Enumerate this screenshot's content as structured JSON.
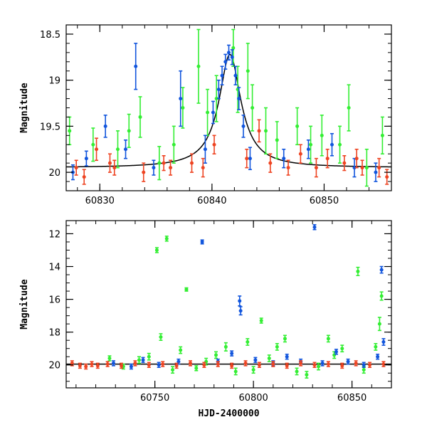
{
  "chart_data": [
    {
      "type": "scatter",
      "panel": "top",
      "xlabel": "",
      "ylabel": "Magnitude",
      "xlim": [
        60827,
        60856
      ],
      "ylim": [
        20.2,
        18.4
      ],
      "y_inverted": true,
      "xticks": [
        60830,
        60840,
        60850
      ],
      "yticks": [
        18.5,
        19,
        19.5,
        20
      ],
      "ytick_labels": [
        "18.5",
        "19",
        "19.5",
        "20"
      ],
      "colors": {
        "green": "#33ee33",
        "blue": "#1155dd",
        "red": "#ee4422",
        "model": "#000000"
      },
      "model_curve": {
        "baseline": 19.95,
        "peak_x": 60841.6,
        "peak_mag": 18.72,
        "width_days": 0.9
      },
      "series": [
        {
          "color_key": "green",
          "points": [
            [
              60827.3,
              19.55,
              0.15
            ],
            [
              60829.4,
              19.7,
              0.18
            ],
            [
              60831.6,
              19.75,
              0.2
            ],
            [
              60832.6,
              19.55,
              0.18
            ],
            [
              60833.6,
              19.4,
              0.22
            ],
            [
              60835.3,
              19.9,
              0.18
            ],
            [
              60836.6,
              19.7,
              0.2
            ],
            [
              60837.4,
              19.3,
              0.22
            ],
            [
              60838.8,
              18.85,
              0.4
            ],
            [
              60839.6,
              19.35,
              0.25
            ],
            [
              60840.4,
              19.2,
              0.25
            ],
            [
              60841.9,
              18.65,
              0.2
            ],
            [
              60842.3,
              19.1,
              0.25
            ],
            [
              60843.2,
              18.9,
              0.3
            ],
            [
              60843.6,
              19.3,
              0.25
            ],
            [
              60844.8,
              19.55,
              0.25
            ],
            [
              60845.8,
              19.65,
              0.2
            ],
            [
              60847.6,
              19.5,
              0.2
            ],
            [
              60848.8,
              19.7,
              0.2
            ],
            [
              60849.8,
              19.6,
              0.22
            ],
            [
              60851.4,
              19.7,
              0.2
            ],
            [
              60852.2,
              19.3,
              0.25
            ],
            [
              60853.8,
              19.95,
              0.2
            ],
            [
              60855.2,
              19.6,
              0.2
            ]
          ]
        },
        {
          "color_key": "blue",
          "points": [
            [
              60827.6,
              20.0,
              0.08
            ],
            [
              60828.8,
              19.85,
              0.08
            ],
            [
              60830.5,
              19.5,
              0.12
            ],
            [
              60832.3,
              19.75,
              0.1
            ],
            [
              60833.2,
              18.85,
              0.25
            ],
            [
              60834.8,
              19.95,
              0.08
            ],
            [
              60837.2,
              19.2,
              0.3
            ],
            [
              60839.4,
              19.75,
              0.15
            ],
            [
              60840.1,
              19.35,
              0.12
            ],
            [
              60840.6,
              19.1,
              0.1
            ],
            [
              60840.9,
              18.95,
              0.1
            ],
            [
              60841.2,
              18.8,
              0.08
            ],
            [
              60841.5,
              18.7,
              0.08
            ],
            [
              60841.8,
              18.75,
              0.08
            ],
            [
              60842.1,
              18.95,
              0.1
            ],
            [
              60842.4,
              19.2,
              0.12
            ],
            [
              60842.8,
              19.5,
              0.12
            ],
            [
              60843.4,
              19.85,
              0.12
            ],
            [
              60846.4,
              19.85,
              0.1
            ],
            [
              60848.6,
              19.75,
              0.1
            ],
            [
              60850.7,
              19.7,
              0.12
            ],
            [
              60852.7,
              19.95,
              0.1
            ],
            [
              60854.6,
              20.0,
              0.1
            ]
          ]
        },
        {
          "color_key": "red",
          "points": [
            [
              60827.9,
              19.95,
              0.08
            ],
            [
              60828.6,
              20.05,
              0.08
            ],
            [
              60829.7,
              19.75,
              0.12
            ],
            [
              60830.9,
              19.9,
              0.1
            ],
            [
              60831.3,
              19.95,
              0.08
            ],
            [
              60833.9,
              20.0,
              0.1
            ],
            [
              60835.7,
              19.9,
              0.08
            ],
            [
              60836.3,
              19.95,
              0.08
            ],
            [
              60838.2,
              19.9,
              0.1
            ],
            [
              60839.2,
              19.95,
              0.1
            ],
            [
              60840.2,
              19.7,
              0.1
            ],
            [
              60843.1,
              19.85,
              0.1
            ],
            [
              60844.2,
              19.55,
              0.12
            ],
            [
              60845.2,
              19.9,
              0.1
            ],
            [
              60846.8,
              19.95,
              0.08
            ],
            [
              60847.9,
              19.8,
              0.1
            ],
            [
              60849.3,
              19.95,
              0.1
            ],
            [
              60850.3,
              19.85,
              0.1
            ],
            [
              60851.8,
              19.9,
              0.08
            ],
            [
              60852.9,
              19.85,
              0.1
            ],
            [
              60853.4,
              19.95,
              0.08
            ],
            [
              60854.9,
              19.95,
              0.1
            ],
            [
              60855.6,
              20.05,
              0.08
            ]
          ]
        }
      ]
    },
    {
      "type": "scatter",
      "panel": "bottom",
      "xlabel": "HJD-2400000",
      "ylabel": "Magnitude",
      "xlim": [
        60705,
        60870
      ],
      "ylim": [
        21.4,
        11.2
      ],
      "y_inverted": true,
      "xticks": [
        60750,
        60800,
        60850
      ],
      "yticks": [
        12,
        14,
        16,
        18,
        20
      ],
      "ytick_labels": [
        "12",
        "14",
        "16",
        "18",
        "20"
      ],
      "colors": {
        "green": "#33ee33",
        "blue": "#1155dd",
        "red": "#ee4422",
        "model": "#000000"
      },
      "model_curve": {
        "baseline": 19.95
      },
      "series": [
        {
          "color_key": "green",
          "points": [
            [
              60727,
              19.6,
              0.15
            ],
            [
              60734,
              20.1,
              0.15
            ],
            [
              60742,
              19.7,
              0.2
            ],
            [
              60747,
              19.5,
              0.2
            ],
            [
              60751,
              13.0,
              0.15
            ],
            [
              60753,
              18.3,
              0.2
            ],
            [
              60756,
              12.3,
              0.15
            ],
            [
              60759,
              20.3,
              0.2
            ],
            [
              60763,
              19.1,
              0.2
            ],
            [
              60766,
              15.4,
              0.1
            ],
            [
              60771,
              20.2,
              0.15
            ],
            [
              60776,
              19.8,
              0.2
            ],
            [
              60781,
              19.4,
              0.2
            ],
            [
              60786,
              18.9,
              0.25
            ],
            [
              60791,
              20.4,
              0.2
            ],
            [
              60797,
              18.6,
              0.2
            ],
            [
              60800,
              20.3,
              0.2
            ],
            [
              60804,
              17.3,
              0.15
            ],
            [
              60808,
              19.6,
              0.2
            ],
            [
              60812,
              18.9,
              0.2
            ],
            [
              60816,
              18.4,
              0.2
            ],
            [
              60822,
              20.4,
              0.2
            ],
            [
              60827,
              20.6,
              0.2
            ],
            [
              60833,
              20.1,
              0.2
            ],
            [
              60838,
              18.4,
              0.2
            ],
            [
              60841,
              19.4,
              0.2
            ],
            [
              60845,
              19.0,
              0.2
            ],
            [
              60853,
              14.3,
              0.25
            ],
            [
              60856,
              20.3,
              0.2
            ],
            [
              60862,
              18.9,
              0.2
            ],
            [
              60864,
              17.5,
              0.4
            ],
            [
              60865,
              15.8,
              0.25
            ]
          ]
        },
        {
          "color_key": "blue",
          "points": [
            [
              60729,
              19.9,
              0.15
            ],
            [
              60738,
              20.1,
              0.15
            ],
            [
              60744,
              19.7,
              0.15
            ],
            [
              60752,
              20.0,
              0.15
            ],
            [
              60762,
              19.8,
              0.15
            ],
            [
              60774,
              12.5,
              0.12
            ],
            [
              60782,
              19.8,
              0.15
            ],
            [
              60789,
              19.3,
              0.15
            ],
            [
              60793,
              16.1,
              0.3
            ],
            [
              60793.5,
              16.7,
              0.25
            ],
            [
              60801,
              19.7,
              0.15
            ],
            [
              60810,
              19.9,
              0.15
            ],
            [
              60817,
              19.5,
              0.15
            ],
            [
              60824,
              19.8,
              0.15
            ],
            [
              60831,
              11.6,
              0.15
            ],
            [
              60835,
              19.9,
              0.15
            ],
            [
              60842,
              19.2,
              0.15
            ],
            [
              60848,
              19.8,
              0.15
            ],
            [
              60856,
              20.0,
              0.15
            ],
            [
              60863,
              19.5,
              0.15
            ],
            [
              60865,
              14.2,
              0.2
            ],
            [
              60866,
              18.6,
              0.2
            ]
          ]
        },
        {
          "color_key": "red",
          "points": [
            [
              60708,
              19.9,
              0.15
            ],
            [
              60712,
              20.05,
              0.15
            ],
            [
              60715,
              20.1,
              0.15
            ],
            [
              60718,
              19.95,
              0.15
            ],
            [
              60721,
              20.05,
              0.15
            ],
            [
              60726,
              19.95,
              0.15
            ],
            [
              60733,
              20.05,
              0.15
            ],
            [
              60740,
              19.9,
              0.15
            ],
            [
              60747,
              20.0,
              0.15
            ],
            [
              60754,
              19.95,
              0.15
            ],
            [
              60761,
              20.05,
              0.15
            ],
            [
              60768,
              19.9,
              0.15
            ],
            [
              60775,
              20.0,
              0.15
            ],
            [
              60782,
              19.95,
              0.15
            ],
            [
              60789,
              20.05,
              0.15
            ],
            [
              60796,
              19.9,
              0.15
            ],
            [
              60803,
              20.0,
              0.15
            ],
            [
              60810,
              19.95,
              0.15
            ],
            [
              60817,
              20.05,
              0.15
            ],
            [
              60824,
              19.9,
              0.15
            ],
            [
              60831,
              20.0,
              0.15
            ],
            [
              60838,
              19.95,
              0.15
            ],
            [
              60845,
              20.05,
              0.15
            ],
            [
              60852,
              19.9,
              0.15
            ],
            [
              60859,
              20.0,
              0.15
            ],
            [
              60866,
              19.95,
              0.15
            ]
          ]
        }
      ]
    }
  ]
}
